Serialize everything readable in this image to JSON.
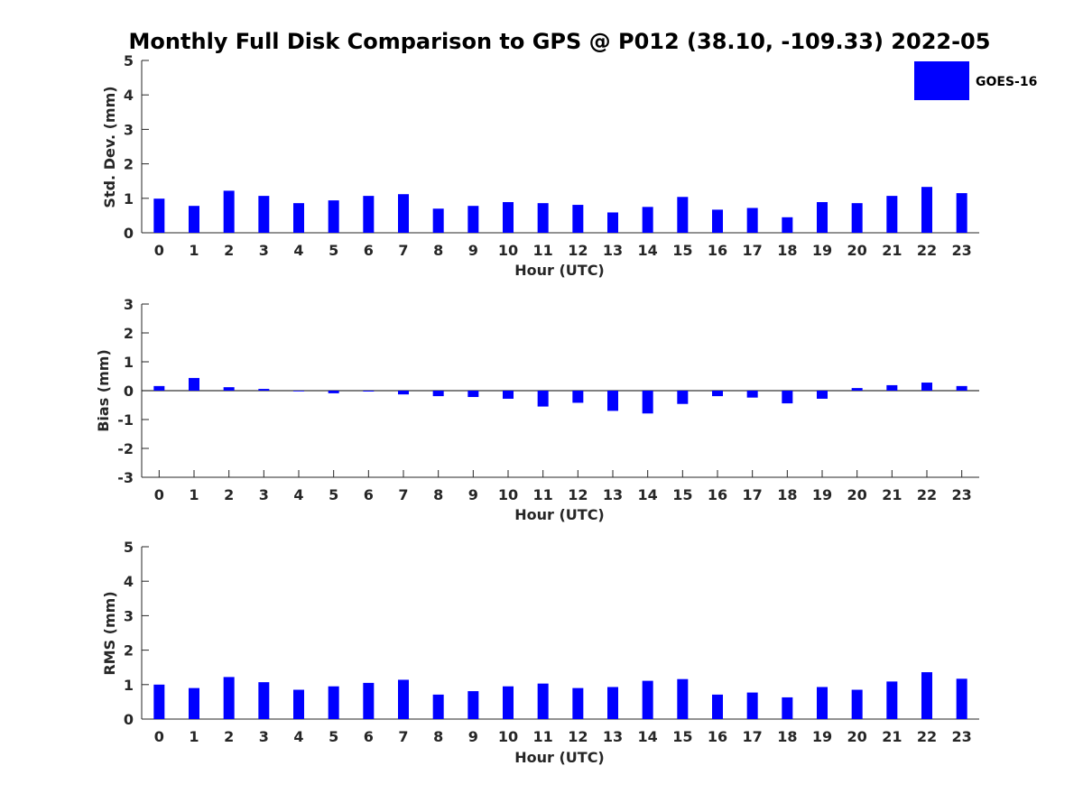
{
  "figure": {
    "title": "Monthly Full Disk Comparison to GPS @ P012 (38.10, -109.33) 2022-05"
  },
  "legend": {
    "label": "GOES-16",
    "color": "#0000ff",
    "placement": "top-right"
  },
  "chart_data": [
    {
      "type": "bar",
      "xlabel": "Hour (UTC)",
      "ylabel": "Std. Dev. (mm)",
      "ylim": [
        0,
        5
      ],
      "yticks": [
        0,
        1,
        2,
        3,
        4,
        5
      ],
      "categories": [
        "0",
        "1",
        "2",
        "3",
        "4",
        "5",
        "6",
        "7",
        "8",
        "9",
        "10",
        "11",
        "12",
        "13",
        "14",
        "15",
        "16",
        "17",
        "18",
        "19",
        "20",
        "21",
        "22",
        "23"
      ],
      "series": [
        {
          "name": "GOES-16",
          "color": "#0000ff",
          "values": [
            0.99,
            0.78,
            1.22,
            1.07,
            0.86,
            0.94,
            1.07,
            1.12,
            0.7,
            0.78,
            0.89,
            0.86,
            0.81,
            0.59,
            0.75,
            1.04,
            0.67,
            0.72,
            0.45,
            0.89,
            0.86,
            1.07,
            1.33,
            1.15
          ]
        }
      ]
    },
    {
      "type": "bar",
      "xlabel": "Hour (UTC)",
      "ylabel": "Bias (mm)",
      "ylim": [
        -3,
        3
      ],
      "yticks": [
        -3,
        -2,
        -1,
        0,
        1,
        2,
        3
      ],
      "categories": [
        "0",
        "1",
        "2",
        "3",
        "4",
        "5",
        "6",
        "7",
        "8",
        "9",
        "10",
        "11",
        "12",
        "13",
        "14",
        "15",
        "16",
        "17",
        "18",
        "19",
        "20",
        "21",
        "22",
        "23"
      ],
      "series": [
        {
          "name": "GOES-16",
          "color": "#0000ff",
          "values": [
            0.16,
            0.44,
            0.12,
            0.06,
            -0.02,
            -0.09,
            -0.03,
            -0.13,
            -0.19,
            -0.22,
            -0.28,
            -0.55,
            -0.42,
            -0.7,
            -0.79,
            -0.46,
            -0.19,
            -0.24,
            -0.44,
            -0.28,
            0.09,
            0.19,
            0.28,
            0.16
          ]
        }
      ]
    },
    {
      "type": "bar",
      "xlabel": "Hour (UTC)",
      "ylabel": "RMS (mm)",
      "ylim": [
        0,
        5
      ],
      "yticks": [
        0,
        1,
        2,
        3,
        4,
        5
      ],
      "categories": [
        "0",
        "1",
        "2",
        "3",
        "4",
        "5",
        "6",
        "7",
        "8",
        "9",
        "10",
        "11",
        "12",
        "13",
        "14",
        "15",
        "16",
        "17",
        "18",
        "19",
        "20",
        "21",
        "22",
        "23"
      ],
      "series": [
        {
          "name": "GOES-16",
          "color": "#0000ff",
          "values": [
            1.0,
            0.9,
            1.22,
            1.07,
            0.85,
            0.95,
            1.05,
            1.14,
            0.71,
            0.81,
            0.95,
            1.03,
            0.9,
            0.93,
            1.11,
            1.16,
            0.71,
            0.77,
            0.63,
            0.93,
            0.85,
            1.09,
            1.36,
            1.17
          ]
        }
      ]
    }
  ]
}
